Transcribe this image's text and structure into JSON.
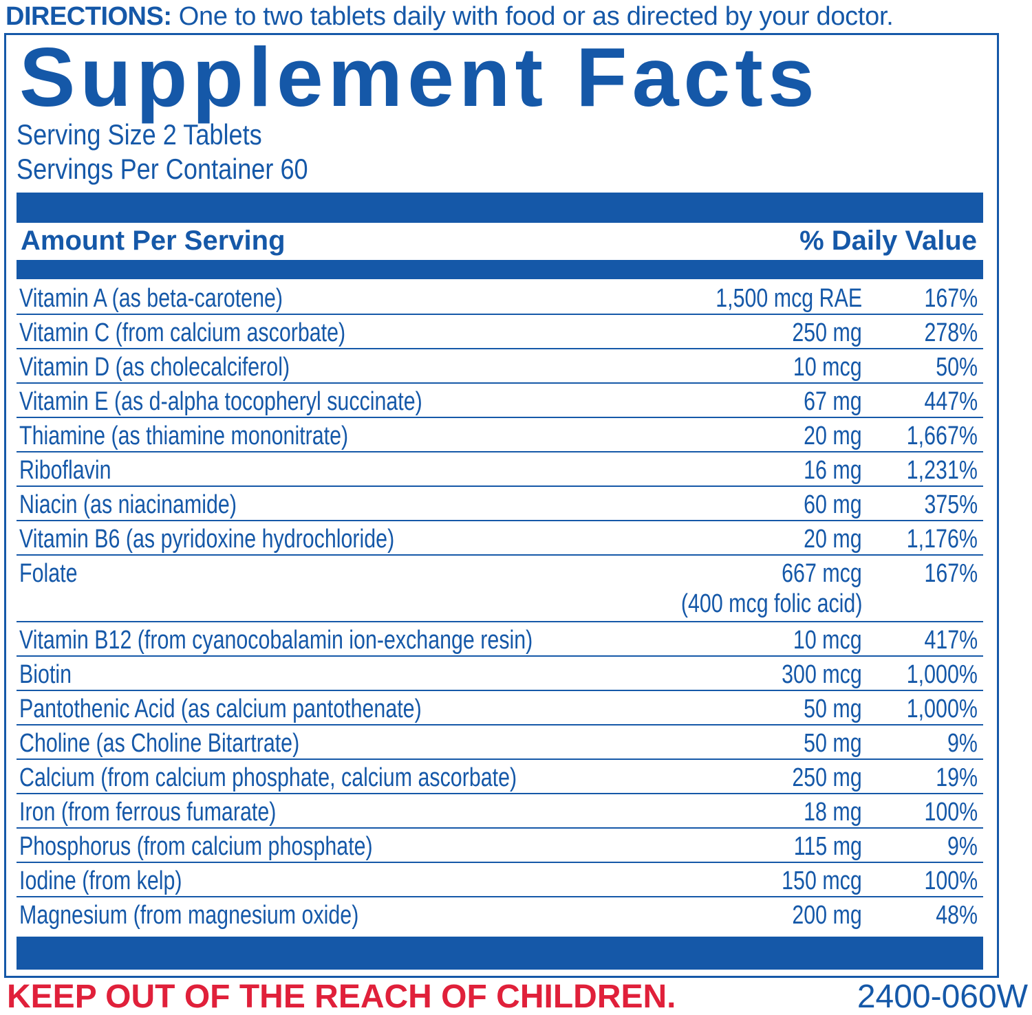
{
  "directions": {
    "label": "DIRECTIONS:",
    "text": " One to two tablets daily with food or as directed by your doctor."
  },
  "title": "Supplement Facts",
  "serving_size": "Serving Size 2 Tablets",
  "servings_per_container": "Servings Per Container 60",
  "header": {
    "amount": "Amount Per Serving",
    "daily_value": "% Daily Value"
  },
  "nutrients": [
    {
      "name": "Vitamin A (as beta-carotene)",
      "amount": "1,500 mcg RAE",
      "dv": "167%"
    },
    {
      "name": "Vitamin C (from calcium ascorbate)",
      "amount": "250 mg",
      "dv": "278%"
    },
    {
      "name": "Vitamin D (as cholecalciferol)",
      "amount": "10 mcg",
      "dv": "50%"
    },
    {
      "name": "Vitamin E (as d-alpha tocopheryl succinate)",
      "amount": "67 mg",
      "dv": "447%"
    },
    {
      "name": "Thiamine (as thiamine mononitrate)",
      "amount": "20 mg",
      "dv": "1,667%"
    },
    {
      "name": "Riboflavin",
      "amount": "16 mg",
      "dv": "1,231%"
    },
    {
      "name": "Niacin (as niacinamide)",
      "amount": "60 mg",
      "dv": "375%"
    },
    {
      "name": "Vitamin B6 (as pyridoxine hydrochloride)",
      "amount": "20 mg",
      "dv": "1,176%"
    },
    {
      "name": "Folate",
      "amount": "667 mcg",
      "amount_note": "(400 mcg folic acid)",
      "dv": "167%"
    },
    {
      "name": "Vitamin B12 (from cyanocobalamin ion-exchange resin)",
      "amount": "10 mcg",
      "dv": "417%"
    },
    {
      "name": "Biotin",
      "amount": "300 mcg",
      "dv": "1,000%"
    },
    {
      "name": "Pantothenic Acid (as calcium pantothenate)",
      "amount": "50 mg",
      "dv": "1,000%"
    },
    {
      "name": "Choline (as Choline Bitartrate)",
      "amount": "50 mg",
      "dv": "9%"
    },
    {
      "name": "Calcium (from calcium phosphate, calcium ascorbate)",
      "amount": "250 mg",
      "dv": "19%"
    },
    {
      "name": "Iron (from ferrous fumarate)",
      "amount": "18 mg",
      "dv": "100%"
    },
    {
      "name": "Phosphorus (from calcium phosphate)",
      "amount": "115 mg",
      "dv": "9%"
    },
    {
      "name": "Iodine (from kelp)",
      "amount": "150 mcg",
      "dv": "100%"
    },
    {
      "name": "Magnesium (from magnesium oxide)",
      "amount": "200 mg",
      "dv": "48%"
    }
  ],
  "warning": "KEEP OUT OF THE REACH OF CHILDREN.",
  "product_code": "2400-060W",
  "colors": {
    "text": "#1558a8",
    "warning": "#e0203a"
  }
}
